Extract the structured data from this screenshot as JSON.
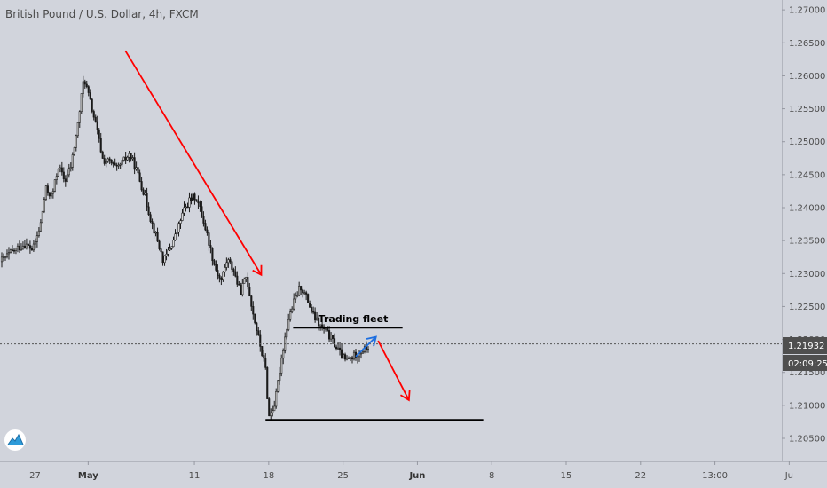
{
  "chart_data": {
    "type": "candlestick",
    "title": "British Pound / U.S. Dollar, 4h, FXCM",
    "y_ticks": [
      "1.27000",
      "1.26500",
      "1.26000",
      "1.25500",
      "1.25000",
      "1.24500",
      "1.24000",
      "1.23500",
      "1.23000",
      "1.22500",
      "1.22000",
      "1.21500",
      "1.21000",
      "1.20500"
    ],
    "y_tick_values": [
      1.27,
      1.265,
      1.26,
      1.255,
      1.25,
      1.245,
      1.24,
      1.235,
      1.23,
      1.225,
      1.22,
      1.215,
      1.21,
      1.205
    ],
    "ylim": [
      1.2015,
      1.2715
    ],
    "x_ticks": [
      {
        "label": "27",
        "day": -4,
        "bold": false
      },
      {
        "label": "May",
        "day": 1,
        "bold": true
      },
      {
        "label": "11",
        "day": 11,
        "bold": false
      },
      {
        "label": "18",
        "day": 18,
        "bold": false
      },
      {
        "label": "25",
        "day": 25,
        "bold": false
      },
      {
        "label": "Jun",
        "day": 32,
        "bold": true
      },
      {
        "label": "8",
        "day": 39,
        "bold": false
      },
      {
        "label": "15",
        "day": 46,
        "bold": false
      },
      {
        "label": "22",
        "day": 53,
        "bold": false
      },
      {
        "label": "13:00",
        "day": 60,
        "bold": false
      },
      {
        "label": "Ju",
        "day": 67,
        "bold": false
      }
    ],
    "xlim": [
      -7.3,
      66.3
    ],
    "current_price": "1.21932",
    "current_price_value": 1.21932,
    "countdown": "02:09:25",
    "candle_anchors": [
      [
        -7.3,
        1.2318
      ],
      [
        -6.0,
        1.2335
      ],
      [
        -5.0,
        1.2345
      ],
      [
        -4.2,
        1.2336
      ],
      [
        -3.5,
        1.2372
      ],
      [
        -3.0,
        1.2428
      ],
      [
        -2.4,
        1.2417
      ],
      [
        -1.8,
        1.2463
      ],
      [
        -1.2,
        1.244
      ],
      [
        -0.6,
        1.2464
      ],
      [
        0.0,
        1.2522
      ],
      [
        0.6,
        1.2598
      ],
      [
        1.2,
        1.256
      ],
      [
        1.8,
        1.252
      ],
      [
        2.4,
        1.2471
      ],
      [
        3.0,
        1.247
      ],
      [
        3.7,
        1.2458
      ],
      [
        4.3,
        1.247
      ],
      [
        4.9,
        1.2481
      ],
      [
        5.5,
        1.2459
      ],
      [
        6.3,
        1.242
      ],
      [
        6.9,
        1.2382
      ],
      [
        7.5,
        1.2351
      ],
      [
        8.1,
        1.2318
      ],
      [
        8.7,
        1.2339
      ],
      [
        9.3,
        1.236
      ],
      [
        9.9,
        1.2392
      ],
      [
        10.5,
        1.241
      ],
      [
        11.1,
        1.2418
      ],
      [
        11.7,
        1.239
      ],
      [
        12.3,
        1.2352
      ],
      [
        12.9,
        1.2312
      ],
      [
        13.5,
        1.2288
      ],
      [
        14.1,
        1.2322
      ],
      [
        14.7,
        1.2305
      ],
      [
        15.3,
        1.2271
      ],
      [
        15.9,
        1.2296
      ],
      [
        16.5,
        1.2242
      ],
      [
        17.1,
        1.2198
      ],
      [
        17.7,
        1.2155
      ],
      [
        18.0,
        1.2082
      ],
      [
        18.6,
        1.2104
      ],
      [
        19.2,
        1.2172
      ],
      [
        19.8,
        1.2228
      ],
      [
        20.4,
        1.2258
      ],
      [
        21.0,
        1.2281
      ],
      [
        21.6,
        1.2262
      ],
      [
        22.2,
        1.2236
      ],
      [
        22.8,
        1.2221
      ],
      [
        23.4,
        1.2212
      ],
      [
        24.0,
        1.2198
      ],
      [
        24.6,
        1.2182
      ],
      [
        25.2,
        1.2168
      ],
      [
        25.8,
        1.2172
      ],
      [
        26.4,
        1.218
      ],
      [
        27.0,
        1.2185
      ],
      [
        27.4,
        1.2188
      ]
    ],
    "annotations": {
      "arrow_1": {
        "from": [
          4.5,
          1.2638
        ],
        "to": [
          17.3,
          1.2298
        ],
        "color": "#ff0000"
      },
      "arrow_2": {
        "from": [
          26.2,
          1.2174
        ],
        "to": [
          28.1,
          1.2204
        ],
        "color": "#1e6fe0"
      },
      "arrow_3": {
        "from": [
          28.3,
          1.2198
        ],
        "to": [
          31.2,
          1.2108
        ],
        "color": "#ff0000"
      },
      "resistance": {
        "x0": 20.3,
        "x1": 30.6,
        "y": 1.2218,
        "label": "Trading fleet",
        "color": "#000000"
      },
      "support": {
        "x0": 17.7,
        "x1": 38.2,
        "y": 1.2078,
        "color": "#000000"
      }
    },
    "grid": false
  },
  "colors": {
    "background": "#d1d4dc",
    "candle_up": "#eeeeee",
    "candle_down": "#1a1a1a",
    "axis_line": "#b2b5be",
    "price_tag": "#4f4f4f"
  },
  "icons": {
    "logo": "tradingview-logo-icon"
  }
}
